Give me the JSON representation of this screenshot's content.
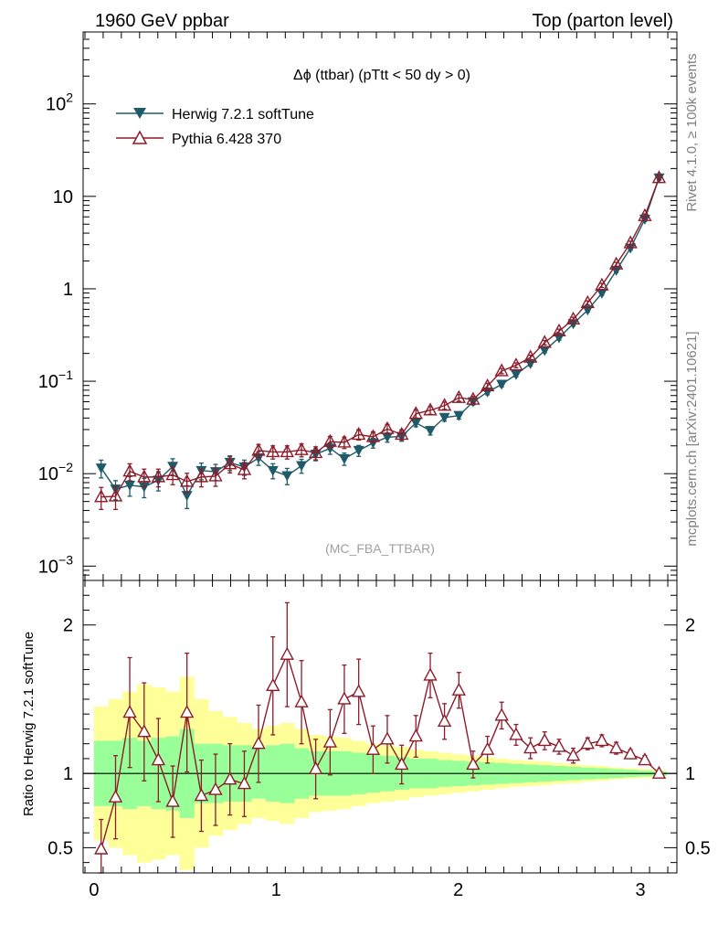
{
  "header": {
    "left": "1960 GeV ppbar",
    "right": "Top (parton level)"
  },
  "side_labels": {
    "rivet": "Rivet 4.1.0, ≥ 100k events",
    "mcplots": "mcplots.cern.ch [arXiv:2401.10621]"
  },
  "chart_data": {
    "type": "line",
    "title": "Δϕ (ttbar) (pTtt < 50 dy > 0)",
    "watermark": "(MC_FBA_TTBAR)",
    "xlabel": "",
    "ylabel": "",
    "ratio_ylabel": "Ratio to Herwig 7.2.1 softTune",
    "xlim": [
      -0.06,
      3.2
    ],
    "ylim": [
      0.0007,
      600
    ],
    "yscale": "log",
    "ratio_ylim": [
      0.33,
      2.3
    ],
    "x_ticks": [
      0,
      1,
      2,
      3
    ],
    "x_tick_labels": [
      "0",
      "1",
      "2",
      "3"
    ],
    "y_ticks": [
      0.001,
      0.01,
      0.1,
      1,
      10,
      100
    ],
    "y_tick_labels": [
      {
        "base": "10",
        "exp": "−3"
      },
      {
        "base": "10",
        "exp": "−2"
      },
      {
        "base": "10",
        "exp": "−1"
      },
      {
        "base": "1",
        "exp": ""
      },
      {
        "base": "10",
        "exp": ""
      },
      {
        "base": "10",
        "exp": "2"
      }
    ],
    "ratio_ticks": [
      0.5,
      1,
      2
    ],
    "ratio_tick_labels": [
      "0.5",
      "1",
      "2"
    ],
    "x": [
      0.039,
      0.118,
      0.196,
      0.275,
      0.353,
      0.432,
      0.51,
      0.589,
      0.667,
      0.746,
      0.825,
      0.903,
      0.982,
      1.06,
      1.139,
      1.217,
      1.296,
      1.374,
      1.453,
      1.532,
      1.61,
      1.689,
      1.767,
      1.846,
      1.924,
      2.003,
      2.081,
      2.16,
      2.238,
      2.317,
      2.396,
      2.474,
      2.553,
      2.631,
      2.71,
      2.788,
      2.867,
      2.945,
      3.024,
      3.102
    ],
    "series": [
      {
        "name": "Herwig 7.2.1 softTune",
        "color": "#1f5a69",
        "marker": "filled-down-triangle",
        "values": [
          0.0115,
          0.0068,
          0.0075,
          0.0072,
          0.0085,
          0.012,
          0.0058,
          0.0108,
          0.0105,
          0.0132,
          0.0118,
          0.0148,
          0.0108,
          0.0095,
          0.0122,
          0.0162,
          0.0188,
          0.0145,
          0.0178,
          0.0215,
          0.0248,
          0.0252,
          0.0355,
          0.0292,
          0.0405,
          0.0425,
          0.0598,
          0.0765,
          0.0925,
          0.118,
          0.155,
          0.215,
          0.295,
          0.418,
          0.588,
          0.895,
          1.58,
          2.75,
          5.65,
          15.8
        ],
        "errors": [
          0.0025,
          0.0016,
          0.0018,
          0.0017,
          0.002,
          0.0025,
          0.0016,
          0.0022,
          0.0021,
          0.0024,
          0.0022,
          0.0025,
          0.002,
          0.0019,
          0.0021,
          0.0024,
          0.0026,
          0.0022,
          0.0024,
          0.0026,
          0.0029,
          0.0028,
          0.0034,
          0.003,
          0.0036,
          0.0036,
          0.0044,
          0.0052,
          0.0058,
          0.007,
          0.009,
          0.012,
          0.016,
          0.022,
          0.03,
          0.045,
          0.08,
          0.14,
          0.28,
          0.8
        ]
      },
      {
        "name": "Pythia 6.428 370",
        "color": "#8c1c2a",
        "marker": "open-up-triangle",
        "values": [
          0.0056,
          0.0057,
          0.0106,
          0.0092,
          0.0092,
          0.0097,
          0.0082,
          0.0092,
          0.0094,
          0.0127,
          0.011,
          0.0178,
          0.0172,
          0.0172,
          0.0181,
          0.0168,
          0.0222,
          0.0218,
          0.0265,
          0.025,
          0.0305,
          0.0265,
          0.0445,
          0.0485,
          0.0545,
          0.0662,
          0.0635,
          0.0885,
          0.129,
          0.149,
          0.181,
          0.262,
          0.348,
          0.468,
          0.705,
          1.09,
          1.84,
          3.12,
          6.15,
          15.8
        ],
        "errors": [
          0.0015,
          0.0016,
          0.0022,
          0.002,
          0.002,
          0.0021,
          0.0019,
          0.002,
          0.0021,
          0.0025,
          0.0022,
          0.0029,
          0.0028,
          0.0028,
          0.0029,
          0.0027,
          0.0031,
          0.0031,
          0.0034,
          0.0033,
          0.0036,
          0.0033,
          0.0044,
          0.0046,
          0.0049,
          0.0055,
          0.0053,
          0.0065,
          0.0085,
          0.009,
          0.01,
          0.014,
          0.018,
          0.024,
          0.036,
          0.055,
          0.09,
          0.15,
          0.3,
          0.8
        ]
      }
    ],
    "ratio": {
      "values": [
        0.49,
        0.84,
        1.41,
        1.28,
        1.09,
        0.81,
        1.41,
        0.85,
        0.89,
        0.96,
        0.93,
        1.2,
        1.59,
        1.8,
        1.48,
        1.03,
        1.21,
        1.5,
        1.55,
        1.16,
        1.23,
        1.06,
        1.25,
        1.66,
        1.35,
        1.56,
        1.06,
        1.16,
        1.39,
        1.26,
        1.17,
        1.22,
        1.18,
        1.12,
        1.2,
        1.22,
        1.17,
        1.13,
        1.09,
        1.0
      ],
      "errors": [
        0.2,
        0.28,
        0.37,
        0.33,
        0.28,
        0.24,
        0.4,
        0.24,
        0.24,
        0.24,
        0.22,
        0.26,
        0.33,
        0.35,
        0.28,
        0.2,
        0.22,
        0.23,
        0.22,
        0.16,
        0.16,
        0.13,
        0.14,
        0.15,
        0.12,
        0.12,
        0.09,
        0.09,
        0.09,
        0.07,
        0.07,
        0.06,
        0.05,
        0.05,
        0.04,
        0.04,
        0.04,
        0.03,
        0.03,
        0.02
      ],
      "band_green": [
        0.22,
        0.22,
        0.24,
        0.22,
        0.24,
        0.25,
        0.3,
        0.2,
        0.2,
        0.19,
        0.19,
        0.17,
        0.19,
        0.2,
        0.17,
        0.15,
        0.15,
        0.15,
        0.14,
        0.13,
        0.12,
        0.11,
        0.1,
        0.1,
        0.09,
        0.085,
        0.08,
        0.075,
        0.07,
        0.065,
        0.06,
        0.055,
        0.05,
        0.045,
        0.04,
        0.035,
        0.03,
        0.025,
        0.02,
        0.015
      ],
      "band_yellow": [
        0.45,
        0.5,
        0.55,
        0.6,
        0.58,
        0.55,
        0.65,
        0.5,
        0.42,
        0.38,
        0.34,
        0.3,
        0.32,
        0.34,
        0.3,
        0.26,
        0.25,
        0.24,
        0.22,
        0.2,
        0.19,
        0.18,
        0.16,
        0.15,
        0.14,
        0.13,
        0.12,
        0.11,
        0.1,
        0.09,
        0.085,
        0.08,
        0.07,
        0.065,
        0.055,
        0.05,
        0.04,
        0.035,
        0.03,
        0.02
      ]
    },
    "legend_position": "top-left"
  }
}
